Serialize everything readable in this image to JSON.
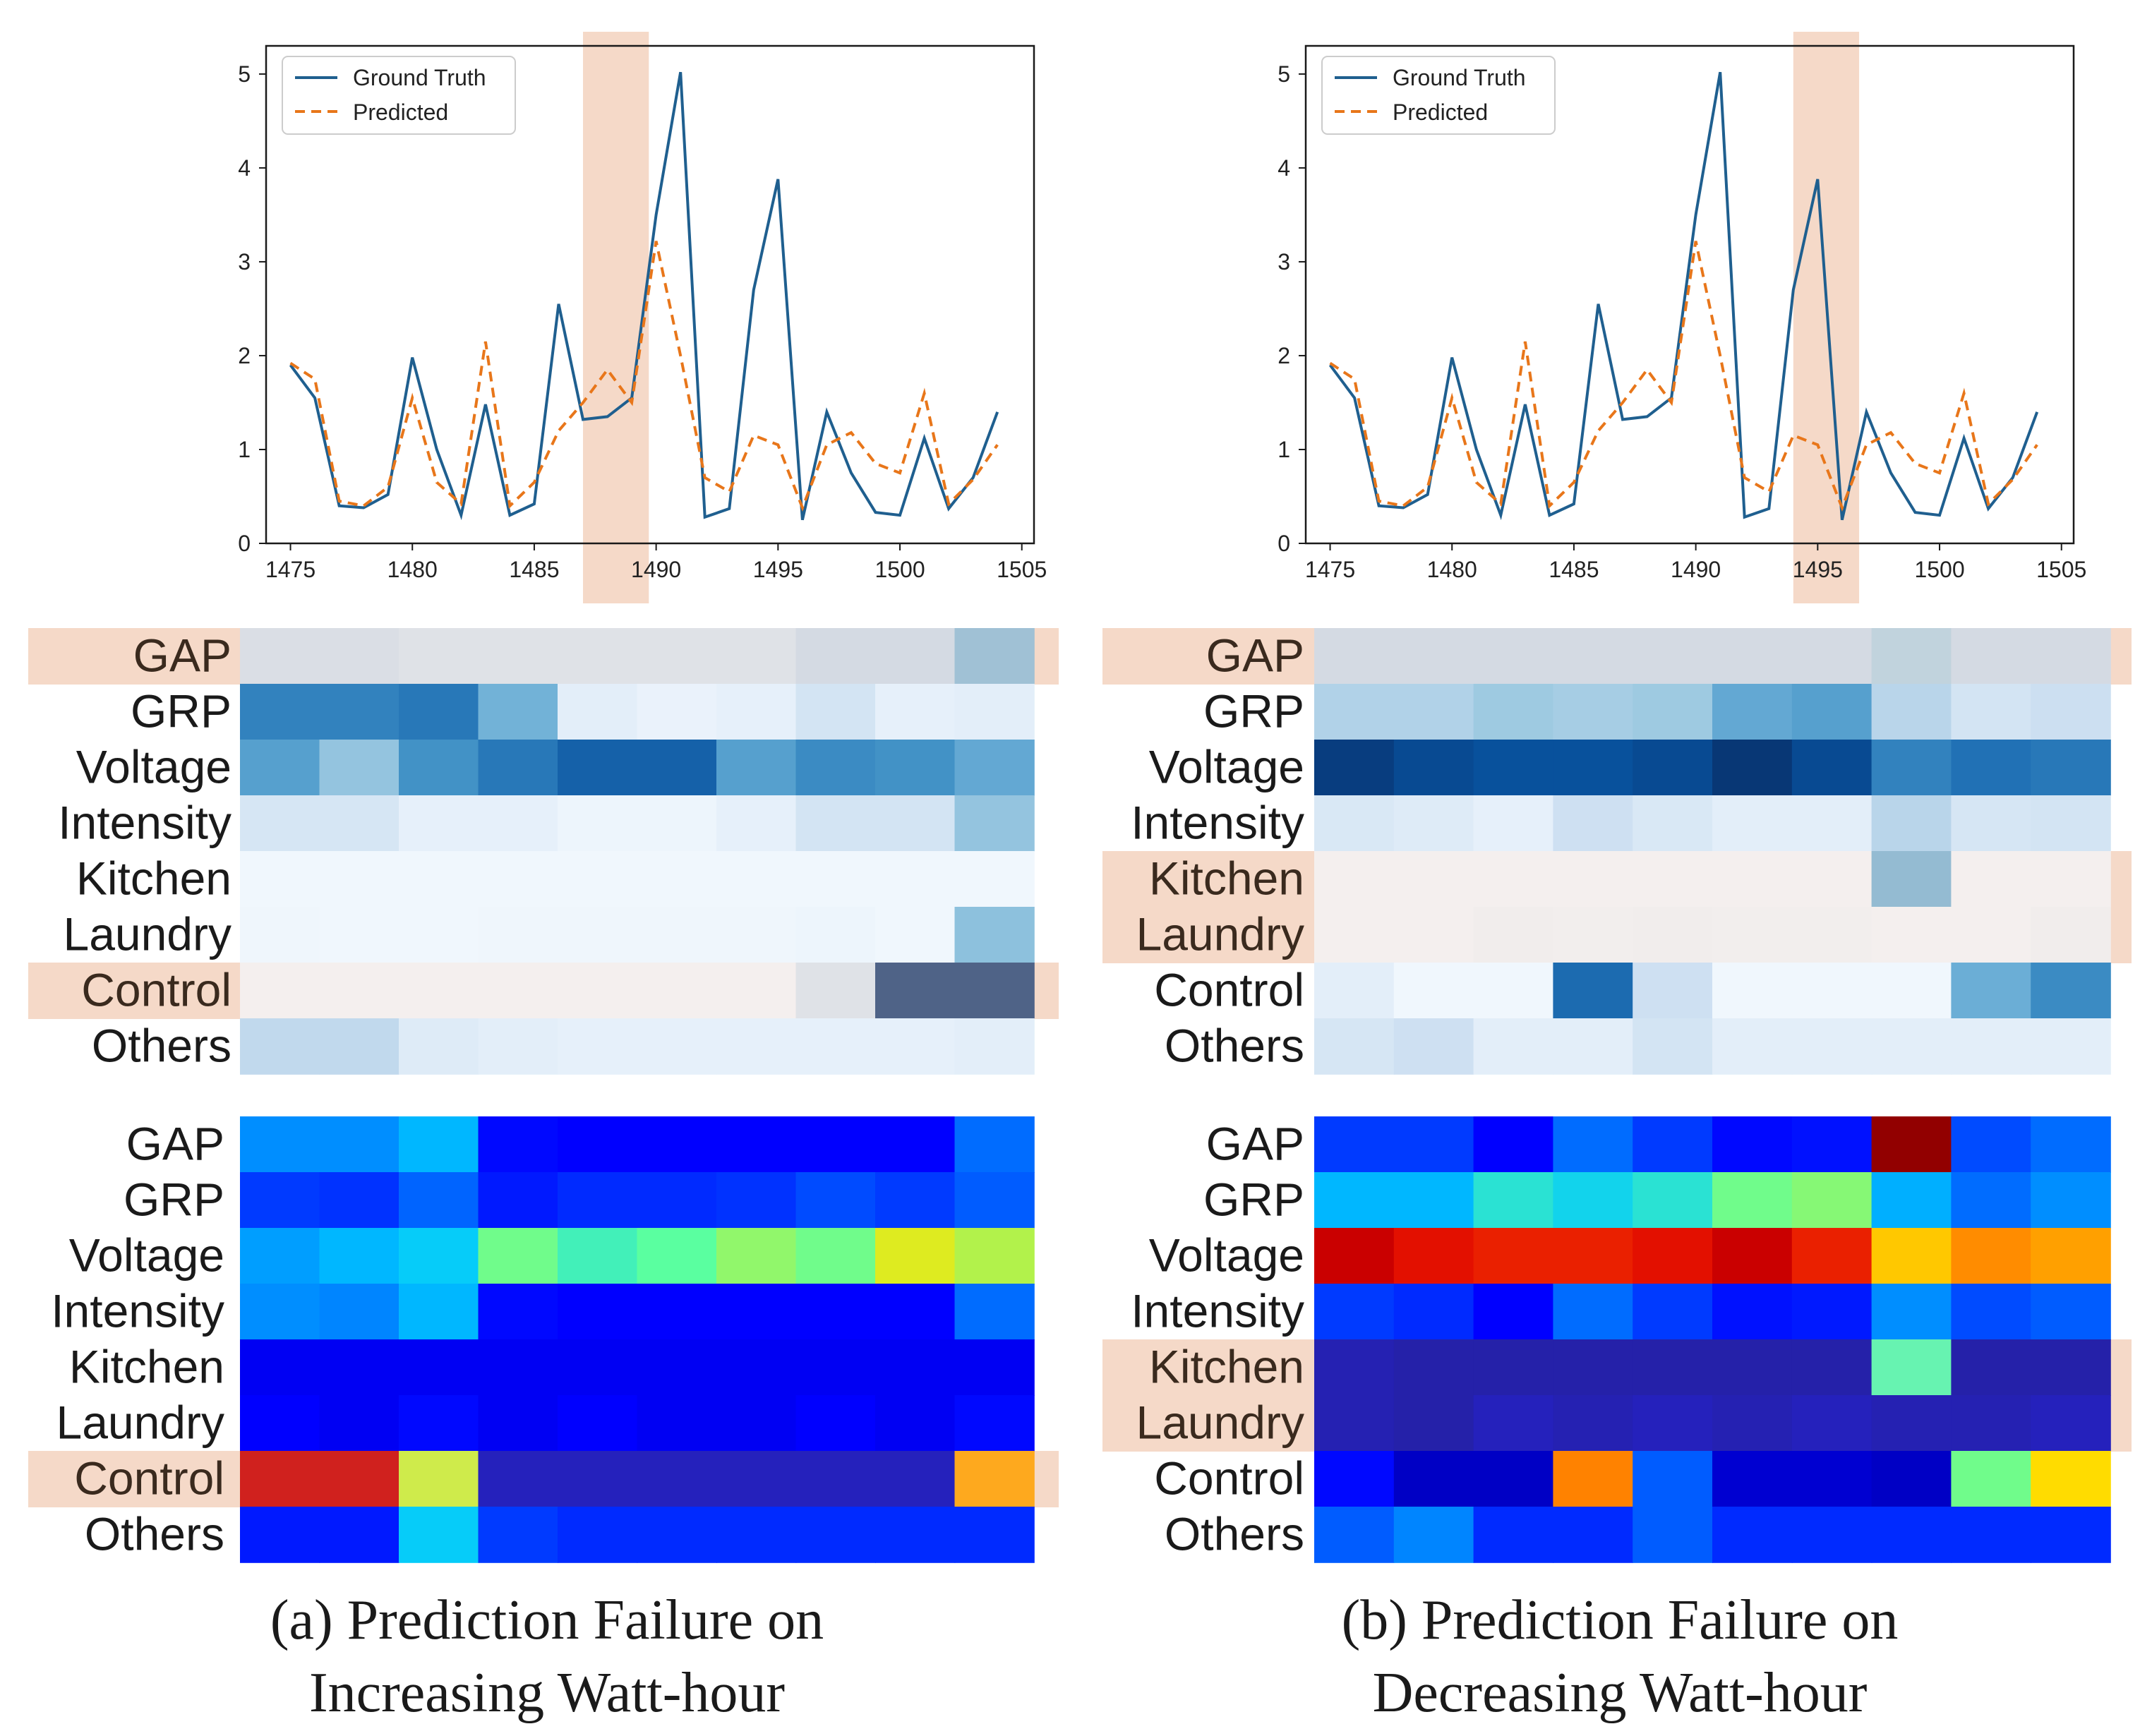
{
  "legend": {
    "ground_truth": "Ground Truth",
    "predicted": "Predicted"
  },
  "colors": {
    "ground_truth": "#1f5f8f",
    "predicted": "#e8761a",
    "highlight": "#f5d9c8",
    "frame": "#1a1a1a"
  },
  "row_labels": [
    "GAP",
    "GRP",
    "Voltage",
    "Intensity",
    "Kitchen",
    "Laundry",
    "Control",
    "Others"
  ],
  "panels": [
    {
      "caption_line1": "(a) Prediction Failure on",
      "caption_line2": "Increasing Watt-hour",
      "highlight_x_range": [
        1487,
        1489.7
      ]
    },
    {
      "caption_line1": "(b) Prediction Failure on",
      "caption_line2": "Decreasing Watt-hour",
      "highlight_x_range": [
        1494,
        1496.7
      ]
    }
  ],
  "chart_data": [
    {
      "type": "line",
      "panel": "a",
      "x": [
        1475,
        1476,
        1477,
        1478,
        1479,
        1480,
        1481,
        1482,
        1483,
        1484,
        1485,
        1486,
        1487,
        1488,
        1489,
        1490,
        1491,
        1492,
        1493,
        1494,
        1495,
        1496,
        1497,
        1498,
        1499,
        1500,
        1501,
        1502,
        1503,
        1504
      ],
      "series": [
        {
          "name": "Ground Truth",
          "values": [
            1.9,
            1.55,
            0.4,
            0.38,
            0.52,
            1.98,
            1.0,
            0.3,
            1.48,
            0.3,
            0.42,
            2.55,
            1.32,
            1.35,
            1.55,
            3.5,
            5.02,
            0.28,
            0.37,
            2.7,
            3.88,
            0.25,
            1.4,
            0.75,
            0.33,
            0.3,
            1.12,
            0.37,
            0.7,
            1.4
          ]
        },
        {
          "name": "Predicted",
          "values": [
            1.92,
            1.75,
            0.45,
            0.4,
            0.6,
            1.55,
            0.65,
            0.42,
            2.15,
            0.4,
            0.65,
            1.2,
            1.5,
            1.85,
            1.5,
            3.22,
            2.0,
            0.7,
            0.55,
            1.15,
            1.05,
            0.38,
            1.05,
            1.18,
            0.85,
            0.75,
            1.6,
            0.42,
            0.68,
            1.05
          ]
        }
      ],
      "xlim": [
        1474,
        1505.5
      ],
      "ylim": [
        0,
        5.3
      ],
      "xticks": [
        1475,
        1480,
        1485,
        1490,
        1495,
        1500,
        1505
      ],
      "yticks": [
        0,
        1,
        2,
        3,
        4,
        5
      ],
      "legend_position": "top-left"
    },
    {
      "type": "line",
      "panel": "b",
      "x": [
        1475,
        1476,
        1477,
        1478,
        1479,
        1480,
        1481,
        1482,
        1483,
        1484,
        1485,
        1486,
        1487,
        1488,
        1489,
        1490,
        1491,
        1492,
        1493,
        1494,
        1495,
        1496,
        1497,
        1498,
        1499,
        1500,
        1501,
        1502,
        1503,
        1504
      ],
      "series": [
        {
          "name": "Ground Truth",
          "values": [
            1.9,
            1.55,
            0.4,
            0.38,
            0.52,
            1.98,
            1.0,
            0.3,
            1.48,
            0.3,
            0.42,
            2.55,
            1.32,
            1.35,
            1.55,
            3.5,
            5.02,
            0.28,
            0.37,
            2.7,
            3.88,
            0.25,
            1.4,
            0.75,
            0.33,
            0.3,
            1.12,
            0.37,
            0.7,
            1.4
          ]
        },
        {
          "name": "Predicted",
          "values": [
            1.92,
            1.75,
            0.45,
            0.4,
            0.6,
            1.55,
            0.65,
            0.42,
            2.15,
            0.4,
            0.65,
            1.2,
            1.5,
            1.85,
            1.5,
            3.22,
            2.0,
            0.7,
            0.55,
            1.15,
            1.05,
            0.38,
            1.05,
            1.18,
            0.85,
            0.75,
            1.6,
            0.42,
            0.68,
            1.05
          ]
        }
      ],
      "xlim": [
        1474,
        1505.5
      ],
      "ylim": [
        0,
        5.3
      ],
      "xticks": [
        1475,
        1480,
        1485,
        1490,
        1495,
        1500,
        1505
      ],
      "yticks": [
        0,
        1,
        2,
        3,
        4,
        5
      ],
      "legend_position": "top-left"
    },
    {
      "type": "heatmap",
      "panel": "a",
      "colormap": "blues",
      "rows": [
        "GAP",
        "GRP",
        "Voltage",
        "Intensity",
        "Kitchen",
        "Laundry",
        "Control",
        "Others"
      ],
      "highlighted_rows": [
        "GAP",
        "Control"
      ],
      "values": [
        [
          0.25,
          0.25,
          0.2,
          0.2,
          0.2,
          0.2,
          0.2,
          0.3,
          0.3,
          0.55
        ],
        [
          0.75,
          0.75,
          0.78,
          0.58,
          0.12,
          0.08,
          0.1,
          0.22,
          0.1,
          0.12
        ],
        [
          0.65,
          0.48,
          0.7,
          0.78,
          0.85,
          0.85,
          0.65,
          0.72,
          0.7,
          0.62
        ],
        [
          0.2,
          0.2,
          0.1,
          0.1,
          0.06,
          0.06,
          0.1,
          0.22,
          0.22,
          0.48
        ],
        [
          0.04,
          0.04,
          0.04,
          0.04,
          0.04,
          0.04,
          0.04,
          0.04,
          0.04,
          0.04
        ],
        [
          0.05,
          0.04,
          0.04,
          0.05,
          0.05,
          0.05,
          0.05,
          0.06,
          0.04,
          0.5
        ],
        [
          0.02,
          0.02,
          0.02,
          0.02,
          0.02,
          0.02,
          0.02,
          0.2,
          1.0,
          1.0
        ],
        [
          0.32,
          0.32,
          0.15,
          0.12,
          0.1,
          0.1,
          0.1,
          0.1,
          0.1,
          0.12
        ]
      ]
    },
    {
      "type": "heatmap",
      "panel": "a",
      "colormap": "jet",
      "rows": [
        "GAP",
        "GRP",
        "Voltage",
        "Intensity",
        "Kitchen",
        "Laundry",
        "Control",
        "Others"
      ],
      "highlighted_rows": [
        "Control"
      ],
      "values": [
        [
          0.28,
          0.28,
          0.33,
          0.12,
          0.11,
          0.11,
          0.11,
          0.11,
          0.11,
          0.24
        ],
        [
          0.18,
          0.17,
          0.23,
          0.14,
          0.16,
          0.16,
          0.17,
          0.2,
          0.18,
          0.22
        ],
        [
          0.3,
          0.33,
          0.36,
          0.52,
          0.46,
          0.5,
          0.55,
          0.52,
          0.62,
          0.58
        ],
        [
          0.28,
          0.27,
          0.33,
          0.12,
          0.11,
          0.11,
          0.11,
          0.11,
          0.11,
          0.24
        ],
        [
          0.1,
          0.1,
          0.1,
          0.1,
          0.1,
          0.1,
          0.1,
          0.1,
          0.1,
          0.1
        ],
        [
          0.11,
          0.1,
          0.12,
          0.1,
          0.11,
          0.1,
          0.1,
          0.11,
          0.1,
          0.12
        ],
        [
          0.92,
          0.92,
          0.6,
          0.05,
          0.05,
          0.05,
          0.05,
          0.05,
          0.05,
          0.72
        ],
        [
          0.14,
          0.14,
          0.36,
          0.18,
          0.16,
          0.16,
          0.16,
          0.16,
          0.16,
          0.16
        ]
      ]
    },
    {
      "type": "heatmap",
      "panel": "b",
      "colormap": "blues",
      "rows": [
        "GAP",
        "GRP",
        "Voltage",
        "Intensity",
        "Kitchen",
        "Laundry",
        "Control",
        "Others"
      ],
      "highlighted_rows": [
        "GAP",
        "Kitchen",
        "Laundry"
      ],
      "values": [
        [
          0.3,
          0.3,
          0.3,
          0.3,
          0.3,
          0.3,
          0.3,
          0.4,
          0.3,
          0.3
        ],
        [
          0.38,
          0.38,
          0.45,
          0.42,
          0.45,
          0.62,
          0.65,
          0.35,
          0.22,
          0.26
        ],
        [
          0.96,
          0.92,
          0.9,
          0.9,
          0.92,
          0.98,
          0.92,
          0.75,
          0.8,
          0.78
        ],
        [
          0.18,
          0.15,
          0.1,
          0.25,
          0.18,
          0.12,
          0.12,
          0.35,
          0.2,
          0.22
        ],
        [
          0.02,
          0.02,
          0.02,
          0.02,
          0.02,
          0.02,
          0.02,
          0.6,
          0.02,
          0.02
        ],
        [
          0.02,
          0.02,
          0.05,
          0.04,
          0.05,
          0.04,
          0.04,
          0.02,
          0.02,
          0.05
        ],
        [
          0.12,
          0.04,
          0.04,
          0.82,
          0.25,
          0.04,
          0.04,
          0.04,
          0.6,
          0.72
        ],
        [
          0.2,
          0.25,
          0.12,
          0.12,
          0.22,
          0.12,
          0.12,
          0.12,
          0.12,
          0.12
        ]
      ]
    },
    {
      "type": "heatmap",
      "panel": "b",
      "colormap": "jet",
      "rows": [
        "GAP",
        "GRP",
        "Voltage",
        "Intensity",
        "Kitchen",
        "Laundry",
        "Control",
        "Others"
      ],
      "highlighted_rows": [
        "Kitchen",
        "Laundry"
      ],
      "values": [
        [
          0.18,
          0.18,
          0.11,
          0.24,
          0.18,
          0.12,
          0.13,
          0.98,
          0.2,
          0.24
        ],
        [
          0.33,
          0.33,
          0.42,
          0.38,
          0.42,
          0.52,
          0.54,
          0.32,
          0.24,
          0.28
        ],
        [
          0.92,
          0.88,
          0.86,
          0.86,
          0.88,
          0.92,
          0.86,
          0.68,
          0.74,
          0.72
        ],
        [
          0.18,
          0.16,
          0.11,
          0.24,
          0.18,
          0.13,
          0.14,
          0.28,
          0.2,
          0.22
        ],
        [
          0.04,
          0.03,
          0.03,
          0.03,
          0.03,
          0.03,
          0.03,
          0.48,
          0.03,
          0.03
        ],
        [
          0.04,
          0.03,
          0.05,
          0.04,
          0.05,
          0.04,
          0.05,
          0.04,
          0.04,
          0.05
        ],
        [
          0.12,
          0.06,
          0.06,
          0.75,
          0.22,
          0.07,
          0.07,
          0.06,
          0.52,
          0.66
        ],
        [
          0.22,
          0.27,
          0.16,
          0.16,
          0.22,
          0.16,
          0.16,
          0.16,
          0.16,
          0.16
        ]
      ]
    }
  ]
}
